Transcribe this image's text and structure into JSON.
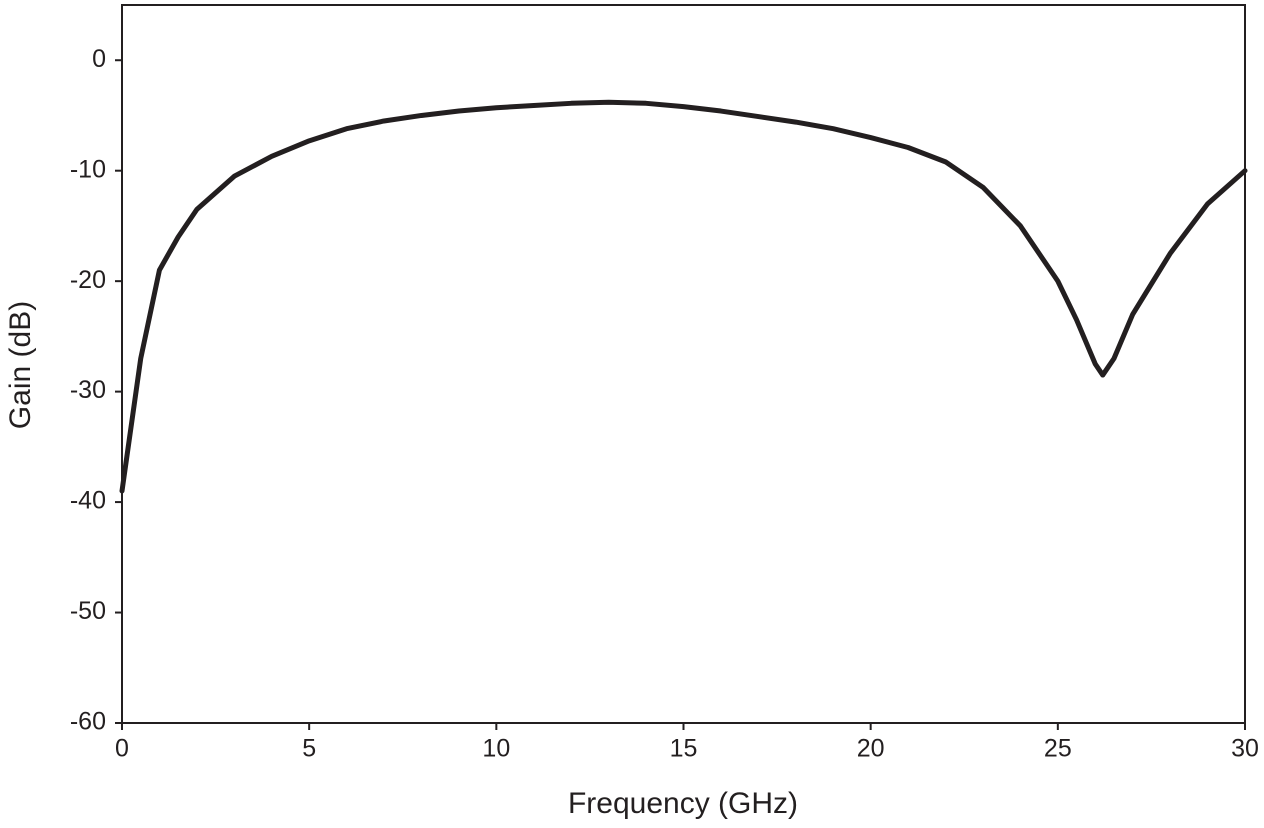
{
  "chart_data": {
    "type": "line",
    "x_label": "Frequency (GHz)",
    "y_label": "Gain (dB)",
    "x": [
      0,
      0.5,
      1,
      1.5,
      2,
      3,
      4,
      5,
      6,
      7,
      8,
      9,
      10,
      11,
      12,
      13,
      14,
      15,
      16,
      17,
      18,
      19,
      20,
      21,
      22,
      23,
      24,
      25,
      25.5,
      26,
      26.2,
      26.5,
      27,
      28,
      29,
      30
    ],
    "values": [
      -39,
      -27,
      -19,
      -16,
      -13.5,
      -10.5,
      -8.7,
      -7.3,
      -6.2,
      -5.5,
      -5,
      -4.6,
      -4.3,
      -4.1,
      -3.9,
      -3.8,
      -3.9,
      -4.2,
      -4.6,
      -5.1,
      -5.6,
      -6.2,
      -7,
      -7.9,
      -9.2,
      -11.5,
      -15,
      -20,
      -23.5,
      -27.5,
      -28.5,
      -27,
      -23,
      -17.5,
      -13,
      -10
    ],
    "color": "#231f20",
    "xlim": [
      0,
      30
    ],
    "xticks": [
      0,
      5,
      10,
      15,
      20,
      25,
      30
    ],
    "ylim": [
      -60,
      5
    ],
    "yticks": [
      -60,
      -50,
      -40,
      -30,
      -20,
      -10,
      0
    ],
    "grid": false
  }
}
